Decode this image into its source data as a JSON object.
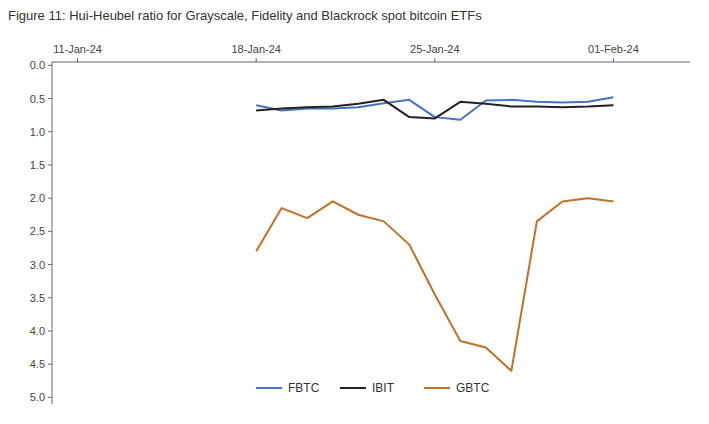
{
  "chart_data": {
    "type": "line",
    "title": "Figure 11: Hui-Heubel ratio for Grayscale, Fidelity and Blackrock spot bitcoin ETFs",
    "x": [
      7,
      8,
      9,
      10,
      11,
      12,
      13,
      14,
      15,
      16,
      17,
      18,
      19,
      20,
      21
    ],
    "series": [
      {
        "name": "FBTC",
        "color": "#4472C4",
        "values": [
          0.6,
          0.68,
          0.65,
          0.65,
          0.63,
          0.57,
          0.52,
          0.78,
          0.82,
          0.53,
          0.52,
          0.55,
          0.56,
          0.55,
          0.48
        ]
      },
      {
        "name": "IBIT",
        "color": "#222222",
        "values": [
          0.68,
          0.65,
          0.63,
          0.62,
          0.58,
          0.52,
          0.78,
          0.8,
          0.55,
          0.58,
          0.62,
          0.62,
          0.63,
          0.62,
          0.6
        ]
      },
      {
        "name": "GBTC",
        "color": "#C07028",
        "values": [
          2.8,
          2.15,
          2.3,
          2.05,
          2.25,
          2.35,
          2.7,
          3.45,
          4.15,
          4.25,
          4.6,
          2.35,
          2.05,
          2.0,
          2.05
        ]
      }
    ],
    "xlim": [
      -1,
      24
    ],
    "xticks": [
      {
        "value": 0,
        "label": "11-Jan-24"
      },
      {
        "value": 7,
        "label": "18-Jan-24"
      },
      {
        "value": 14,
        "label": "25-Jan-24"
      },
      {
        "value": 21,
        "label": "01-Feb-24"
      }
    ],
    "ylim": [
      5.1,
      -0.05
    ],
    "yticks": [
      {
        "value": 0,
        "label": "0.0"
      },
      0.5,
      {
        "value": 1,
        "label": "1.0"
      },
      1.5,
      {
        "value": 2,
        "label": "2.0"
      },
      2.5,
      {
        "value": 3,
        "label": "3.0"
      },
      3.5,
      {
        "value": 4,
        "label": "4.0"
      },
      4.5,
      {
        "value": 5,
        "label": "5.0"
      }
    ],
    "grid": false,
    "legend": "lower center"
  }
}
